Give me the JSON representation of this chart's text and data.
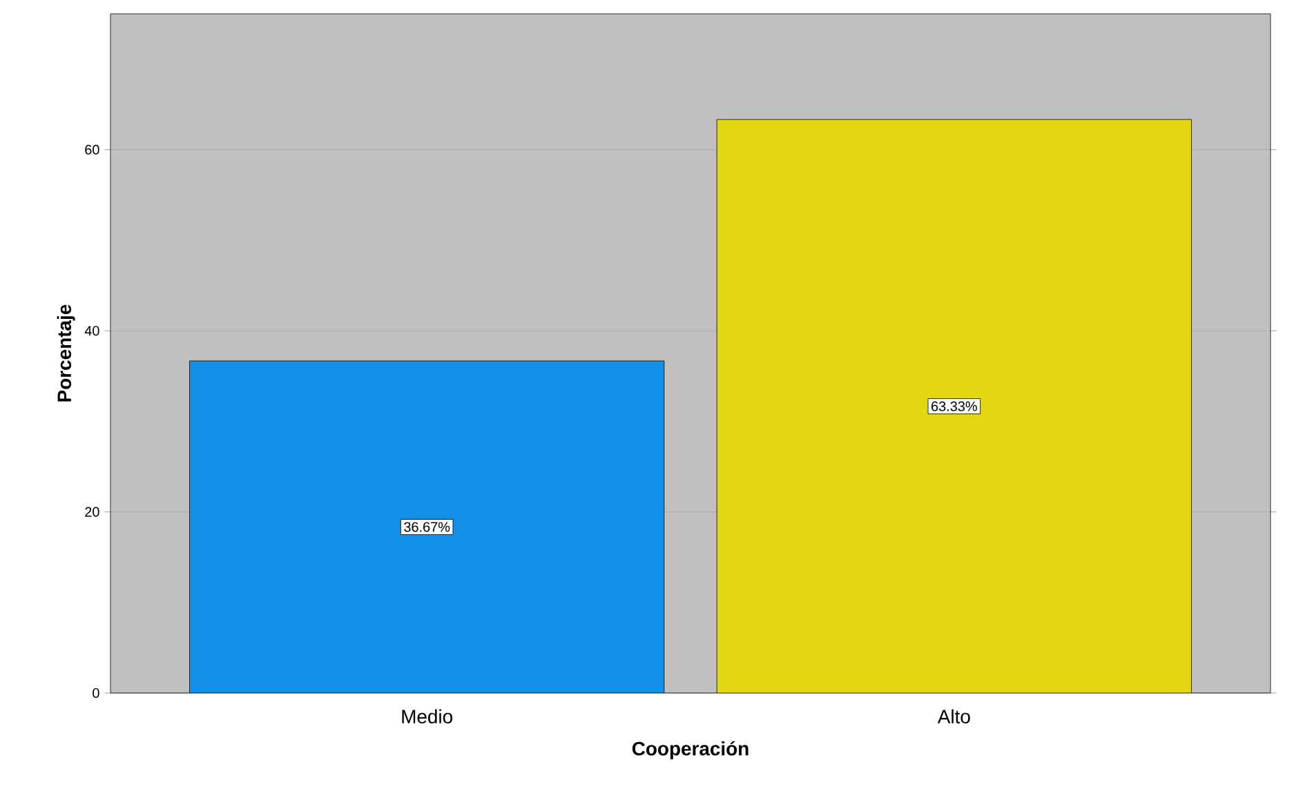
{
  "chart_data": {
    "type": "bar",
    "xlabel": "Cooperación",
    "ylabel": "Porcentaje",
    "categories": [
      "Medio",
      "Alto"
    ],
    "values": [
      36.67,
      63.33
    ],
    "value_labels": [
      "36.67%",
      "63.33%"
    ],
    "colors": [
      "#1490e8",
      "#e2d712"
    ],
    "ylim": [
      0,
      75
    ],
    "yticks": [
      0,
      20,
      40,
      60
    ],
    "grid": "y"
  }
}
